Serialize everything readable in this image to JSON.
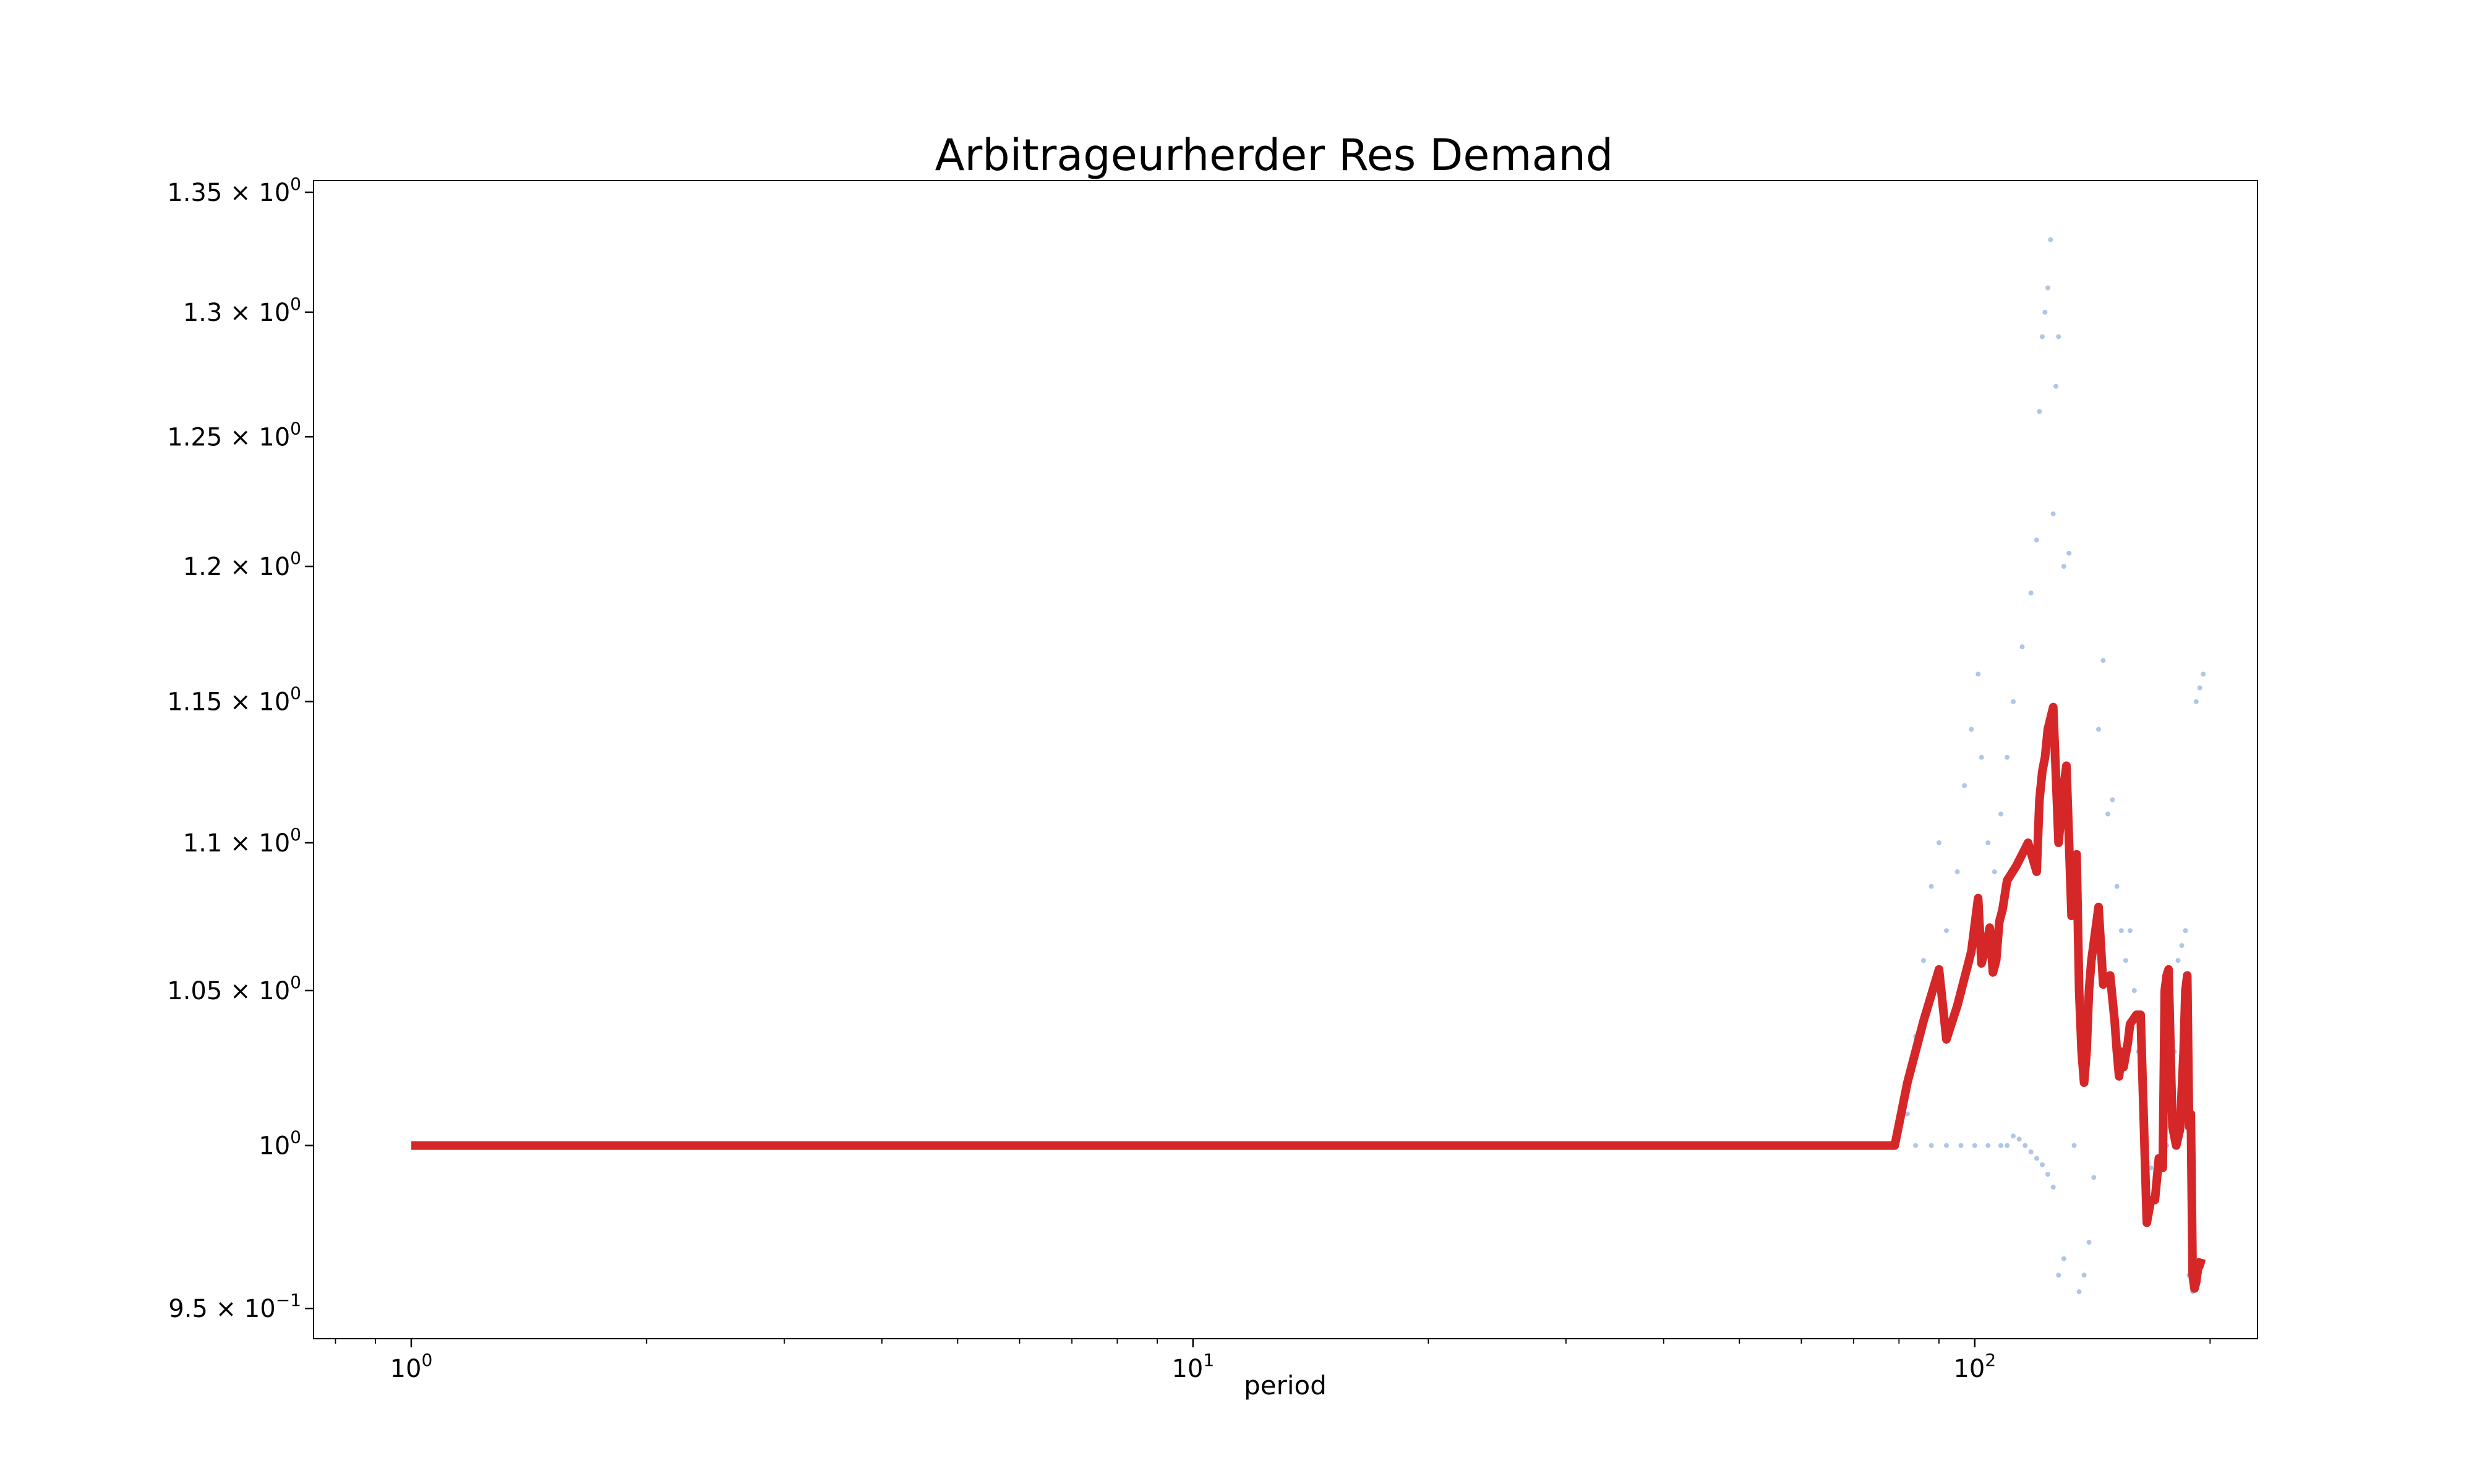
{
  "chart_data": {
    "type": "line",
    "title": "Arbitrageurherder Res Demand",
    "xlabel": "period",
    "ylabel": "",
    "xscale": "log",
    "yscale": "log",
    "xlim": [
      0.75,
      230
    ],
    "ylim": [
      0.941,
      1.355
    ],
    "grid": false,
    "legend": "none",
    "colors": {
      "line": "#d62728",
      "scatter": "#aec7e8"
    },
    "x_ticks": [
      {
        "value": 1,
        "base": "10",
        "exp": "0"
      },
      {
        "value": 10,
        "base": "10",
        "exp": "1"
      },
      {
        "value": 100,
        "base": "10",
        "exp": "2"
      }
    ],
    "y_ticks": [
      {
        "value": 0.95,
        "mant": "9.5 × 10",
        "exp": "−1"
      },
      {
        "value": 1.0,
        "mant": "10",
        "exp": "0"
      },
      {
        "value": 1.05,
        "mant": "1.05 × 10",
        "exp": "0"
      },
      {
        "value": 1.1,
        "mant": "1.1 × 10",
        "exp": "0"
      },
      {
        "value": 1.15,
        "mant": "1.15 × 10",
        "exp": "0"
      },
      {
        "value": 1.2,
        "mant": "1.2 × 10",
        "exp": "0"
      },
      {
        "value": 1.25,
        "mant": "1.25 × 10",
        "exp": "0"
      },
      {
        "value": 1.3,
        "mant": "1.3 × 10",
        "exp": "0"
      },
      {
        "value": 1.35,
        "mant": "1.35 × 10",
        "exp": "0"
      }
    ],
    "series": [
      {
        "kind": "line",
        "x": [
          1,
          10,
          79,
          82,
          86,
          90,
          92,
          95,
          99,
          101,
          102,
          103.5,
          104.5,
          105.5,
          106.5,
          107.5,
          108.5,
          110,
          113,
          117,
          120,
          121,
          122,
          123,
          124,
          126,
          128,
          129,
          130,
          131,
          133,
          135,
          136,
          137,
          138,
          139,
          140,
          141,
          142,
          144,
          146,
          149,
          151,
          152,
          153,
          154,
          155,
          157,
          158,
          159,
          161,
          163,
          166,
          168,
          170,
          172,
          174,
          175,
          176,
          177,
          179,
          181,
          183,
          185,
          186,
          187,
          188,
          189,
          190,
          191,
          192,
          193,
          194,
          195
        ],
        "y": [
          1.0,
          1.0,
          1.0,
          1.02,
          1.04,
          1.057,
          1.034,
          1.045,
          1.063,
          1.081,
          1.059,
          1.065,
          1.071,
          1.056,
          1.06,
          1.073,
          1.077,
          1.087,
          1.092,
          1.1,
          1.09,
          1.115,
          1.125,
          1.13,
          1.14,
          1.148,
          1.1,
          1.11,
          1.12,
          1.127,
          1.075,
          1.096,
          1.05,
          1.03,
          1.02,
          1.03,
          1.05,
          1.06,
          1.066,
          1.078,
          1.052,
          1.055,
          1.04,
          1.03,
          1.022,
          1.03,
          1.025,
          1.033,
          1.039,
          1.04,
          1.042,
          1.042,
          0.976,
          0.983,
          0.983,
          0.996,
          0.993,
          1.05,
          1.055,
          1.057,
          1.006,
          1.0,
          1.005,
          1.03,
          1.05,
          1.055,
          1.006,
          1.01,
          0.96,
          0.956,
          0.958,
          0.962,
          0.963,
          0.965
        ]
      },
      {
        "kind": "scatter",
        "x": [
          79,
          82,
          84,
          86,
          88,
          90,
          92,
          95,
          97,
          99,
          101,
          102,
          104,
          106,
          108,
          110,
          112,
          115,
          118,
          120,
          121,
          122,
          123,
          124,
          125,
          126,
          127,
          128,
          130,
          132,
          134,
          136,
          138,
          140,
          142,
          144,
          146,
          148,
          150,
          152,
          154,
          156,
          158,
          160,
          162,
          164,
          166,
          168,
          170,
          172,
          174,
          176,
          178,
          180,
          182,
          184,
          186,
          188,
          190,
          192,
          194,
          196
        ],
        "y": [
          1.0,
          1.01,
          1.035,
          1.06,
          1.085,
          1.1,
          1.07,
          1.09,
          1.12,
          1.14,
          1.16,
          1.13,
          1.1,
          1.09,
          1.11,
          1.13,
          1.15,
          1.17,
          1.19,
          1.21,
          1.26,
          1.29,
          1.3,
          1.31,
          1.33,
          1.22,
          1.27,
          1.29,
          1.2,
          1.205,
          1.0,
          0.955,
          0.96,
          0.97,
          0.99,
          1.14,
          1.165,
          1.11,
          1.115,
          1.085,
          1.07,
          1.06,
          1.07,
          1.05,
          1.03,
          1.02,
          1.0,
          0.993,
          0.99,
          0.99,
          0.995,
          1.0,
          1.02,
          1.03,
          1.06,
          1.065,
          1.07,
          0.96,
          0.955,
          1.15,
          1.155,
          1.16
        ]
      },
      {
        "kind": "scatter",
        "x": [
          84,
          88,
          92,
          96,
          100,
          104,
          108,
          110,
          112,
          114,
          116,
          118,
          120,
          122,
          124,
          126,
          128,
          130
        ],
        "y": [
          1.0,
          1.0,
          1.0,
          1.0,
          1.0,
          1.0,
          1.0,
          1.0,
          1.003,
          1.002,
          1.0,
          0.998,
          0.996,
          0.994,
          0.991,
          0.987,
          0.96,
          0.965
        ]
      }
    ]
  }
}
